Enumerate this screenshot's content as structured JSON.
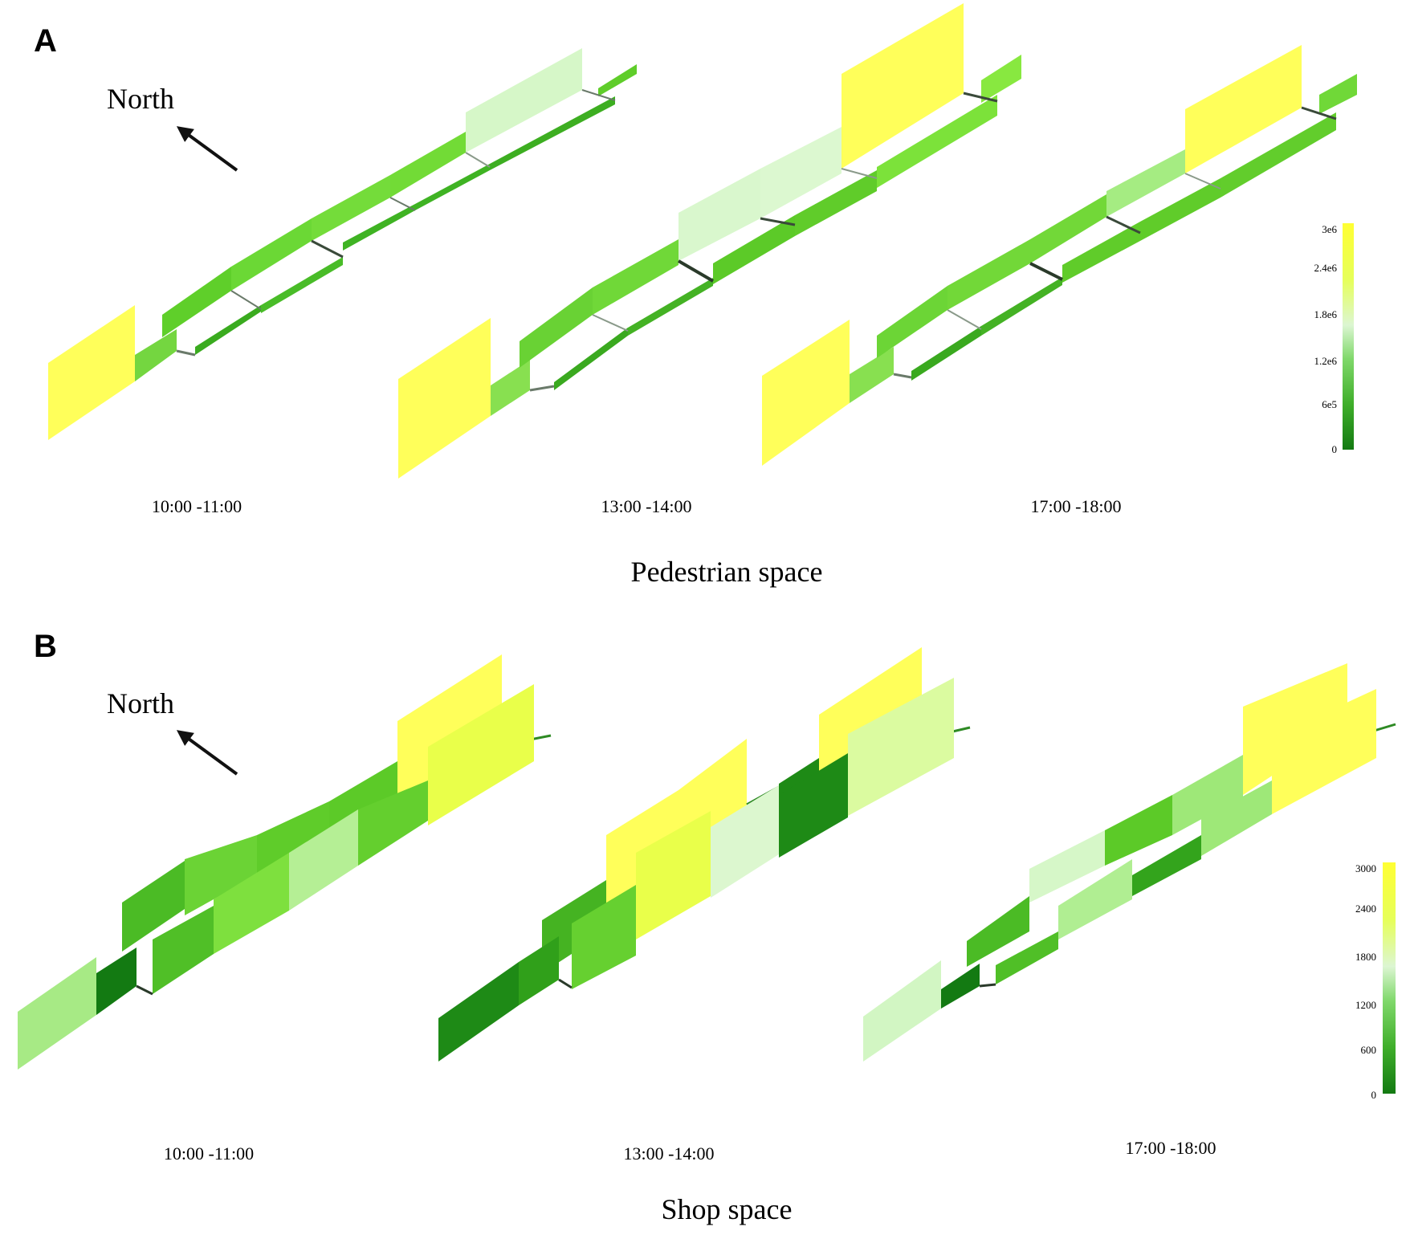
{
  "panels": [
    {
      "id": "A",
      "letter": "A",
      "north_label": "North",
      "section_title": "Pedestrian space",
      "time_labels": [
        "10:00 -11:00",
        "13:00 -14:00",
        "17:00 -18:00"
      ],
      "colorbar": {
        "ticks": [
          "3e6",
          "2.4e6",
          "1.8e6",
          "1.2e6",
          "6e5",
          "0"
        ]
      }
    },
    {
      "id": "B",
      "letter": "B",
      "north_label": "North",
      "section_title": "Shop space",
      "time_labels": [
        "10:00 -11:00",
        "13:00 -14:00",
        "17:00 -18:00"
      ],
      "colorbar": {
        "ticks": [
          "3000",
          "2400",
          "1800",
          "1200",
          "600",
          "0"
        ]
      }
    }
  ],
  "colors": {
    "dark_green": "#1e8a16",
    "green": "#4fc91f",
    "light_green": "#88e84a",
    "pale_green": "#d5f7c6",
    "yellow_green": "#e9ff4a",
    "yellow": "#ffff5a"
  }
}
